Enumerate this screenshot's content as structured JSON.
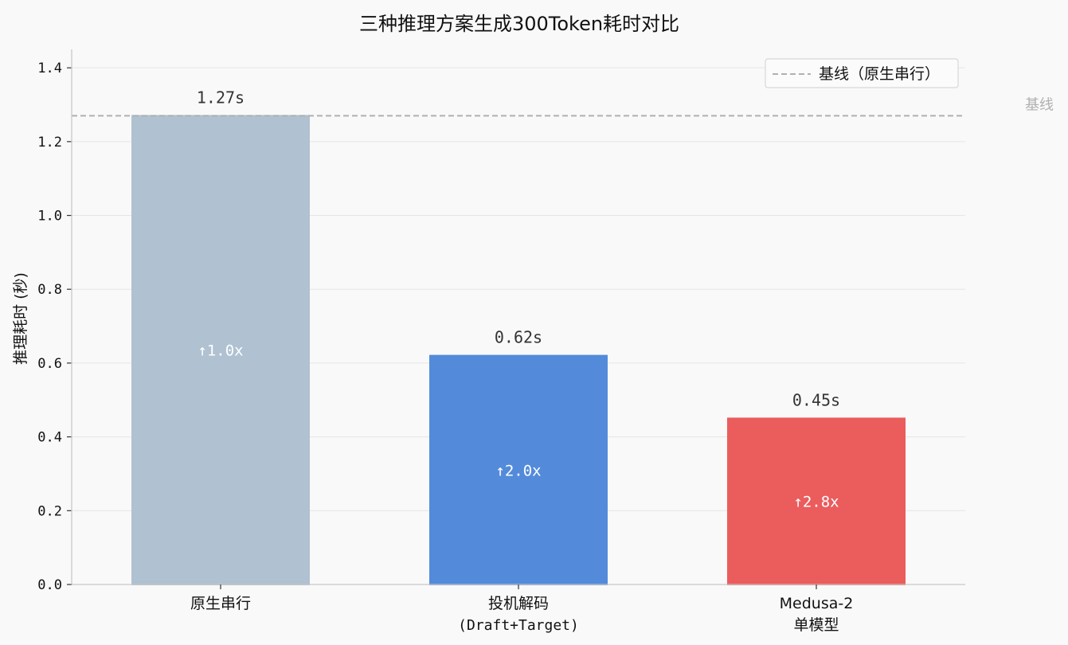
{
  "chart_data": {
    "type": "bar",
    "title": "三种推理方案生成300Token耗时对比",
    "ylabel": "推理耗时 (秒)",
    "xlabel": "",
    "ylim": [
      0,
      1.45
    ],
    "yticks": [
      "0.0",
      "0.2",
      "0.4",
      "0.6",
      "0.8",
      "1.0",
      "1.2",
      "1.4"
    ],
    "grid": "horizontal",
    "categories": [
      {
        "line1": "原生串行",
        "line2": ""
      },
      {
        "line1": "投机解码",
        "line2": "(Draft+Target)"
      },
      {
        "line1": "Medusa-2",
        "line2": "单模型"
      }
    ],
    "values": [
      1.27,
      0.62,
      0.45
    ],
    "value_labels": [
      "1.27s",
      "0.62s",
      "0.45s"
    ],
    "speedup_labels": [
      "↑1.0x",
      "↑2.0x",
      "↑2.8x"
    ],
    "colors": [
      "#b0c1d1",
      "#538bda",
      "#eb5c5d"
    ],
    "baseline": {
      "value": 1.27,
      "legend_label": "基线（原生串行）",
      "annotation": "基线",
      "color": "#b0b0b0"
    },
    "legend_position": "top-right"
  }
}
